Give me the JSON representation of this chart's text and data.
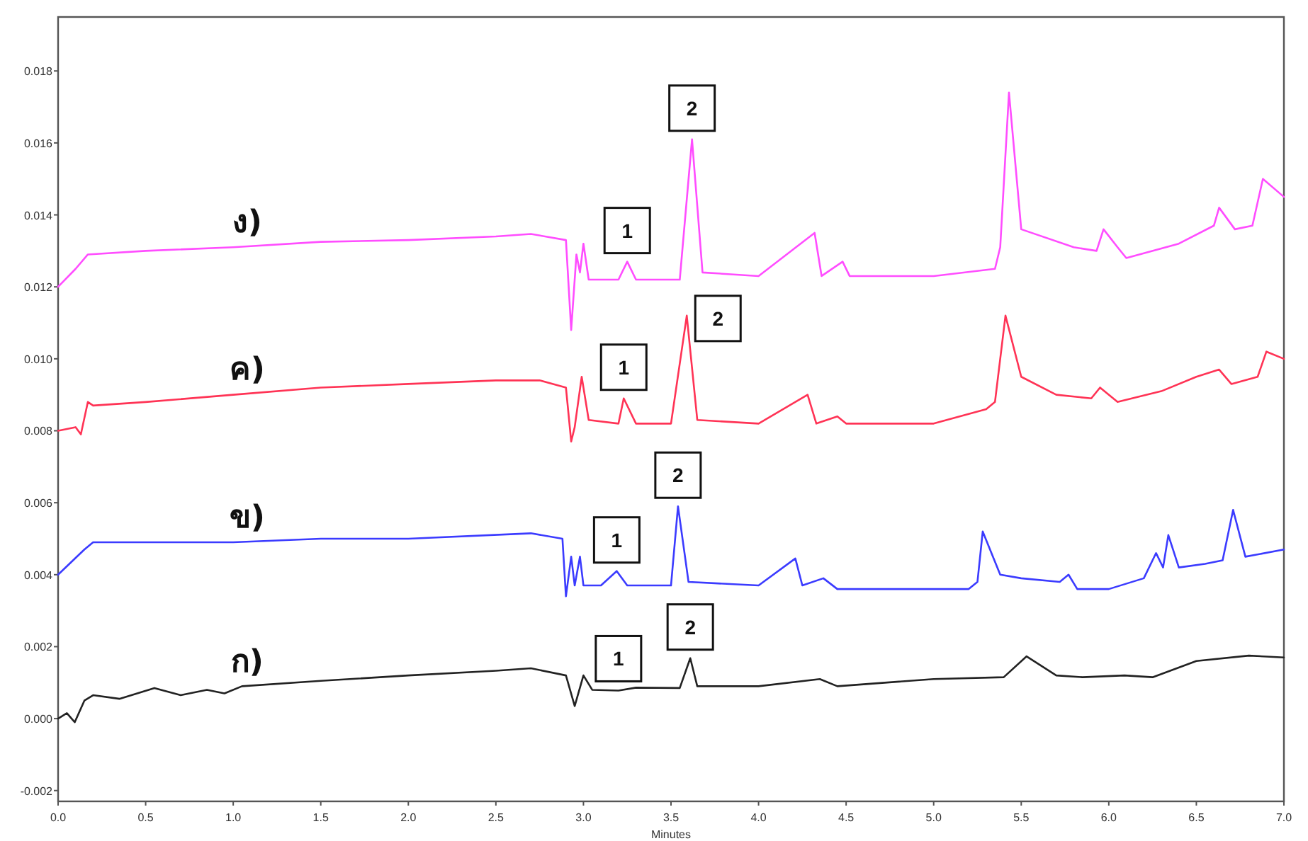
{
  "chart_data": {
    "type": "line",
    "xlabel": "Minutes",
    "xlim": [
      0,
      7
    ],
    "ylim": [
      -0.0023,
      0.0195
    ],
    "xticks": [
      {
        "value": 0,
        "label": "0.0"
      },
      {
        "value": 0.5,
        "label": "0.5"
      },
      {
        "value": 1,
        "label": "1.0"
      },
      {
        "value": 1.5,
        "label": "1.5"
      },
      {
        "value": 2,
        "label": "2.0"
      },
      {
        "value": 2.5,
        "label": "2.5"
      },
      {
        "value": 3,
        "label": "3.0"
      },
      {
        "value": 3.5,
        "label": "3.5"
      },
      {
        "value": 4,
        "label": "4.0"
      },
      {
        "value": 4.5,
        "label": "4.5"
      },
      {
        "value": 5,
        "label": "5.0"
      },
      {
        "value": 5.5,
        "label": "5.5"
      },
      {
        "value": 6,
        "label": "6.0"
      },
      {
        "value": 6.5,
        "label": "6.5"
      },
      {
        "value": 7,
        "label": "7.0"
      }
    ],
    "yticks": [
      {
        "value": -0.002,
        "label": "-0.002"
      },
      {
        "value": 0,
        "label": "0.000"
      },
      {
        "value": 0.002,
        "label": "0.002"
      },
      {
        "value": 0.004,
        "label": "0.004"
      },
      {
        "value": 0.006,
        "label": "0.006"
      },
      {
        "value": 0.008,
        "label": "0.008"
      },
      {
        "value": 0.01,
        "label": "0.010"
      },
      {
        "value": 0.012,
        "label": "0.012"
      },
      {
        "value": 0.014,
        "label": "0.014"
      },
      {
        "value": 0.016,
        "label": "0.016"
      },
      {
        "value": 0.018,
        "label": "0.018"
      }
    ],
    "grid": false,
    "legend": false,
    "marker": "none",
    "line_style": "solid",
    "series": [
      {
        "name": "ก)",
        "color": "#222222",
        "x": [
          0,
          0.05,
          0.095,
          0.15,
          0.2,
          0.35,
          0.55,
          0.7,
          0.85,
          0.95,
          1.05,
          1.5,
          2.0,
          2.5,
          2.7,
          2.9,
          2.95,
          3.0,
          3.05,
          3.2,
          3.3,
          3.55,
          3.61,
          3.65,
          4.0,
          4.35,
          4.45,
          5.0,
          5.4,
          5.53,
          5.7,
          5.85,
          6.09,
          6.25,
          6.5,
          6.8,
          7.0
        ],
        "values": [
          0,
          0.00015,
          -0.0001,
          0.0005,
          0.00065,
          0.00055,
          0.00085,
          0.00065,
          0.0008,
          0.0007,
          0.0009,
          0.00105,
          0.0012,
          0.00133,
          0.0014,
          0.0012,
          0.00035,
          0.0012,
          0.0008,
          0.00078,
          0.00086,
          0.00085,
          0.00168,
          0.0009,
          0.0009,
          0.0011,
          0.0009,
          0.0011,
          0.00115,
          0.00173,
          0.0012,
          0.00115,
          0.0012,
          0.00115,
          0.0016,
          0.00175,
          0.0017
        ]
      },
      {
        "name": "ข)",
        "color": "#3b3bff",
        "x": [
          0,
          0.15,
          0.2,
          1.0,
          1.5,
          2.0,
          2.7,
          2.88,
          2.9,
          2.93,
          2.95,
          2.98,
          3.0,
          3.1,
          3.19,
          3.25,
          3.5,
          3.54,
          3.6,
          4.0,
          4.21,
          4.25,
          4.37,
          4.45,
          5.0,
          5.2,
          5.25,
          5.28,
          5.38,
          5.5,
          5.72,
          5.77,
          5.82,
          6.0,
          6.2,
          6.27,
          6.31,
          6.34,
          6.4,
          6.55,
          6.65,
          6.71,
          6.78,
          7.0
        ],
        "values": [
          0.004,
          0.0047,
          0.0049,
          0.0049,
          0.005,
          0.005,
          0.00515,
          0.005,
          0.0034,
          0.0045,
          0.0037,
          0.0045,
          0.0037,
          0.0037,
          0.0041,
          0.0037,
          0.0037,
          0.0059,
          0.0038,
          0.0037,
          0.00445,
          0.0037,
          0.0039,
          0.0036,
          0.0036,
          0.0036,
          0.0038,
          0.0052,
          0.004,
          0.0039,
          0.0038,
          0.004,
          0.0036,
          0.0036,
          0.0039,
          0.0046,
          0.0042,
          0.0051,
          0.0042,
          0.0043,
          0.0044,
          0.0058,
          0.0045,
          0.0047
        ]
      },
      {
        "name": "ค)",
        "color": "#ff3355",
        "x": [
          0,
          0.1,
          0.13,
          0.17,
          0.2,
          0.5,
          1.0,
          1.5,
          2.0,
          2.5,
          2.75,
          2.9,
          2.93,
          2.95,
          2.99,
          3.03,
          3.2,
          3.23,
          3.3,
          3.5,
          3.59,
          3.65,
          4.0,
          4.28,
          4.33,
          4.45,
          4.5,
          5.0,
          5.3,
          5.35,
          5.41,
          5.5,
          5.7,
          5.9,
          5.95,
          6.05,
          6.3,
          6.5,
          6.63,
          6.7,
          6.85,
          6.9,
          7.0
        ],
        "values": [
          0.008,
          0.0081,
          0.0079,
          0.0088,
          0.0087,
          0.0088,
          0.009,
          0.0092,
          0.0093,
          0.0094,
          0.0094,
          0.0092,
          0.0077,
          0.0081,
          0.0095,
          0.0083,
          0.0082,
          0.0089,
          0.0082,
          0.0082,
          0.0112,
          0.0083,
          0.0082,
          0.009,
          0.0082,
          0.0084,
          0.0082,
          0.0082,
          0.0086,
          0.0088,
          0.0112,
          0.0095,
          0.009,
          0.0089,
          0.0092,
          0.0088,
          0.0091,
          0.0095,
          0.0097,
          0.0093,
          0.0095,
          0.0102,
          0.01
        ]
      },
      {
        "name": "ง)",
        "color": "#ff4dff",
        "x": [
          0,
          0.1,
          0.17,
          0.5,
          1.0,
          1.5,
          2.0,
          2.5,
          2.7,
          2.9,
          2.93,
          2.96,
          2.98,
          3.0,
          3.03,
          3.2,
          3.25,
          3.3,
          3.55,
          3.62,
          3.68,
          4.0,
          4.32,
          4.36,
          4.48,
          4.52,
          5.0,
          5.35,
          5.38,
          5.43,
          5.5,
          5.8,
          5.93,
          5.97,
          6.05,
          6.1,
          6.4,
          6.6,
          6.63,
          6.72,
          6.82,
          6.88,
          7.0
        ],
        "values": [
          0.012,
          0.0125,
          0.0129,
          0.013,
          0.0131,
          0.01325,
          0.0133,
          0.0134,
          0.01347,
          0.0133,
          0.0108,
          0.0129,
          0.0124,
          0.0132,
          0.0122,
          0.0122,
          0.0127,
          0.0122,
          0.0122,
          0.0161,
          0.0124,
          0.0123,
          0.0135,
          0.0123,
          0.0127,
          0.0123,
          0.0123,
          0.0125,
          0.0131,
          0.0174,
          0.0136,
          0.0131,
          0.013,
          0.0136,
          0.0131,
          0.0128,
          0.0132,
          0.0137,
          0.0142,
          0.0136,
          0.0137,
          0.015,
          0.0145
        ]
      }
    ],
    "annotations": [
      {
        "text": "1",
        "x": 3.2,
        "y": 0.0008
      },
      {
        "text": "2",
        "x": 3.61,
        "y": 0.00168
      },
      {
        "text": "1",
        "x": 3.19,
        "y": 0.0041
      },
      {
        "text": "2",
        "x": 3.54,
        "y": 0.0059
      },
      {
        "text": "1",
        "x": 3.23,
        "y": 0.0089
      },
      {
        "text": "2",
        "x": 3.59,
        "y": 0.0112
      },
      {
        "text": "1",
        "x": 3.25,
        "y": 0.0127
      },
      {
        "text": "2",
        "x": 3.62,
        "y": 0.0161
      }
    ]
  }
}
